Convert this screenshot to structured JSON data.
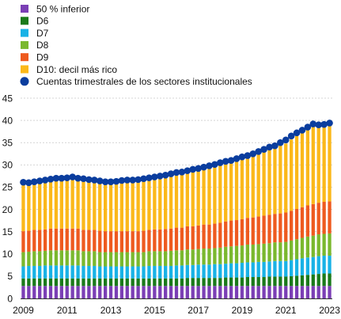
{
  "chart_data": {
    "type": "bar",
    "stacked": true,
    "title": "",
    "xlabel": "",
    "ylabel": "",
    "ylim": [
      0,
      45
    ],
    "yticks": [
      0,
      5,
      10,
      15,
      20,
      25,
      30,
      35,
      40,
      45
    ],
    "xticks": [
      "2009",
      "2011",
      "2013",
      "2015",
      "2017",
      "2019",
      "2021",
      "2023"
    ],
    "grid": "horizontal-dashed",
    "legend_position": "top-left",
    "x_start_year": 2009,
    "periods": 57,
    "series": [
      {
        "name": "50 % inferior",
        "color": "#7b3fb5",
        "values": [
          2.8,
          2.8,
          2.8,
          2.8,
          2.8,
          2.8,
          2.8,
          2.8,
          2.8,
          2.8,
          2.8,
          2.8,
          2.8,
          2.8,
          2.8,
          2.8,
          2.8,
          2.8,
          2.8,
          2.8,
          2.8,
          2.8,
          2.8,
          2.8,
          2.8,
          2.8,
          2.8,
          2.8,
          2.8,
          2.8,
          2.8,
          2.8,
          2.8,
          2.8,
          2.8,
          2.8,
          2.8,
          2.8,
          2.8,
          2.8,
          2.8,
          2.8,
          2.8,
          2.8,
          2.8,
          2.8,
          2.8,
          2.8,
          2.8,
          2.8,
          2.8,
          2.8,
          2.8,
          2.8,
          2.8,
          2.8,
          2.8
        ]
      },
      {
        "name": "D6",
        "color": "#1a7a1a",
        "values": [
          1.7,
          1.7,
          1.7,
          1.7,
          1.7,
          1.7,
          1.7,
          1.7,
          1.7,
          1.7,
          1.7,
          1.7,
          1.7,
          1.7,
          1.7,
          1.7,
          1.7,
          1.7,
          1.7,
          1.7,
          1.7,
          1.7,
          1.7,
          1.7,
          1.7,
          1.7,
          1.7,
          1.7,
          1.7,
          1.7,
          1.8,
          1.8,
          1.8,
          1.8,
          1.8,
          1.8,
          1.8,
          1.9,
          1.9,
          1.9,
          1.9,
          2.0,
          2.0,
          2.0,
          2.0,
          2.1,
          2.1,
          2.1,
          2.1,
          2.2,
          2.3,
          2.4,
          2.5,
          2.6,
          2.7,
          2.8,
          2.8
        ]
      },
      {
        "name": "D7",
        "color": "#19b2e6",
        "values": [
          2.7,
          2.8,
          2.8,
          2.8,
          2.9,
          2.9,
          2.9,
          2.9,
          2.9,
          2.9,
          2.9,
          2.8,
          2.8,
          2.8,
          2.7,
          2.7,
          2.7,
          2.7,
          2.7,
          2.7,
          2.7,
          2.7,
          2.7,
          2.8,
          2.8,
          2.8,
          2.8,
          2.8,
          2.9,
          2.9,
          2.9,
          2.9,
          3.0,
          3.0,
          3.0,
          3.1,
          3.1,
          3.1,
          3.2,
          3.2,
          3.3,
          3.3,
          3.3,
          3.4,
          3.4,
          3.4,
          3.5,
          3.5,
          3.5,
          3.6,
          3.7,
          3.8,
          3.9,
          3.9,
          4.0,
          4.0,
          4.0
        ]
      },
      {
        "name": "D8",
        "color": "#7ab82e",
        "values": [
          3.2,
          3.2,
          3.3,
          3.3,
          3.3,
          3.4,
          3.4,
          3.4,
          3.4,
          3.4,
          3.4,
          3.3,
          3.3,
          3.3,
          3.2,
          3.2,
          3.2,
          3.2,
          3.2,
          3.2,
          3.2,
          3.2,
          3.2,
          3.3,
          3.3,
          3.3,
          3.3,
          3.4,
          3.4,
          3.4,
          3.5,
          3.5,
          3.5,
          3.6,
          3.6,
          3.6,
          3.7,
          3.8,
          3.8,
          3.9,
          3.9,
          4.0,
          4.0,
          4.0,
          4.1,
          4.1,
          4.2,
          4.2,
          4.3,
          4.4,
          4.5,
          4.6,
          4.7,
          4.8,
          4.9,
          4.9,
          5.0
        ]
      },
      {
        "name": "D9",
        "color": "#ee5a1f",
        "values": [
          4.7,
          4.7,
          4.8,
          4.8,
          4.8,
          4.9,
          4.9,
          4.9,
          4.9,
          4.9,
          4.9,
          4.8,
          4.8,
          4.8,
          4.8,
          4.7,
          4.7,
          4.7,
          4.7,
          4.7,
          4.7,
          4.7,
          4.8,
          4.8,
          4.9,
          4.9,
          5.0,
          5.0,
          5.1,
          5.1,
          5.2,
          5.2,
          5.3,
          5.4,
          5.4,
          5.5,
          5.6,
          5.7,
          5.8,
          5.8,
          5.9,
          6.0,
          6.1,
          6.2,
          6.3,
          6.4,
          6.4,
          6.5,
          6.6,
          6.7,
          6.8,
          6.9,
          7.0,
          7.1,
          7.1,
          7.2,
          7.2
        ]
      },
      {
        "name": "D10: decil más rico",
        "color": "#fbb81a",
        "values": [
          10.8,
          10.8,
          10.9,
          11.0,
          11.1,
          11.2,
          11.3,
          11.3,
          11.4,
          11.3,
          11.3,
          11.2,
          11.1,
          11.1,
          11.0,
          10.9,
          10.9,
          10.9,
          10.9,
          11.0,
          11.0,
          11.0,
          11.1,
          11.2,
          11.3,
          11.4,
          11.5,
          11.6,
          11.8,
          11.9,
          12.0,
          12.1,
          12.3,
          12.5,
          12.7,
          12.9,
          13.1,
          13.3,
          13.5,
          13.6,
          13.8,
          14.0,
          14.2,
          14.4,
          14.6,
          14.8,
          15.1,
          15.3,
          15.5,
          16.0,
          16.4,
          16.9,
          17.3,
          17.6,
          17.8,
          17.6,
          17.6
        ]
      }
    ],
    "markers": {
      "name": "Cuentas trimestrales de los sectores institucionales",
      "color": "#0a3d9e",
      "values": [
        26.1,
        26.0,
        26.2,
        26.4,
        26.6,
        26.8,
        27.0,
        27.0,
        27.1,
        27.3,
        27.0,
        26.9,
        26.7,
        26.6,
        26.4,
        26.2,
        26.2,
        26.3,
        26.5,
        26.6,
        26.6,
        26.7,
        26.9,
        27.1,
        27.3,
        27.5,
        27.7,
        28.0,
        28.3,
        28.4,
        28.7,
        29.0,
        29.2,
        29.5,
        29.8,
        30.1,
        30.5,
        30.8,
        31.0,
        31.4,
        31.8,
        32.1,
        32.5,
        33.0,
        33.5,
        34.0,
        34.3,
        35.0,
        35.6,
        36.5,
        37.2,
        37.8,
        38.5,
        39.2,
        39.0,
        39.1,
        39.4
      ]
    }
  }
}
